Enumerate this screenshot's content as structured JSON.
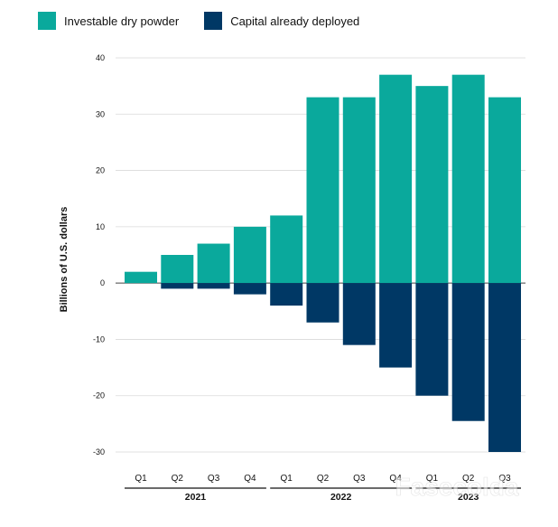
{
  "chart_data": {
    "type": "bar",
    "stacked": "diverging",
    "title": "",
    "xlabel": "",
    "ylabel": "Billions of U.S. dollars",
    "ylim": [
      -30,
      40
    ],
    "y_ticks": [
      40,
      30,
      20,
      10,
      0,
      -10,
      -20,
      -30
    ],
    "grid": true,
    "legend_position": "top-left",
    "categories": [
      "Q1",
      "Q2",
      "Q3",
      "Q4",
      "Q1",
      "Q2",
      "Q3",
      "Q4",
      "Q1",
      "Q2",
      "Q3"
    ],
    "groups": [
      {
        "label": "2021",
        "categories": [
          "Q1",
          "Q2",
          "Q3",
          "Q4"
        ]
      },
      {
        "label": "2022",
        "categories": [
          "Q1",
          "Q2",
          "Q3",
          "Q4"
        ]
      },
      {
        "label": "2023",
        "categories": [
          "Q1",
          "Q2",
          "Q3"
        ]
      }
    ],
    "series": [
      {
        "name": "Investable dry powder",
        "color": "#0aa99c",
        "values": [
          2,
          5,
          7,
          10,
          12,
          33,
          33,
          37,
          35,
          37,
          33
        ]
      },
      {
        "name": "Capital already deployed",
        "color": "#003865",
        "values": [
          0,
          -1,
          -1,
          -2,
          -4,
          -7,
          -11,
          -15,
          -20,
          -24.5,
          -30
        ]
      }
    ]
  },
  "watermark": "Fasecolda"
}
